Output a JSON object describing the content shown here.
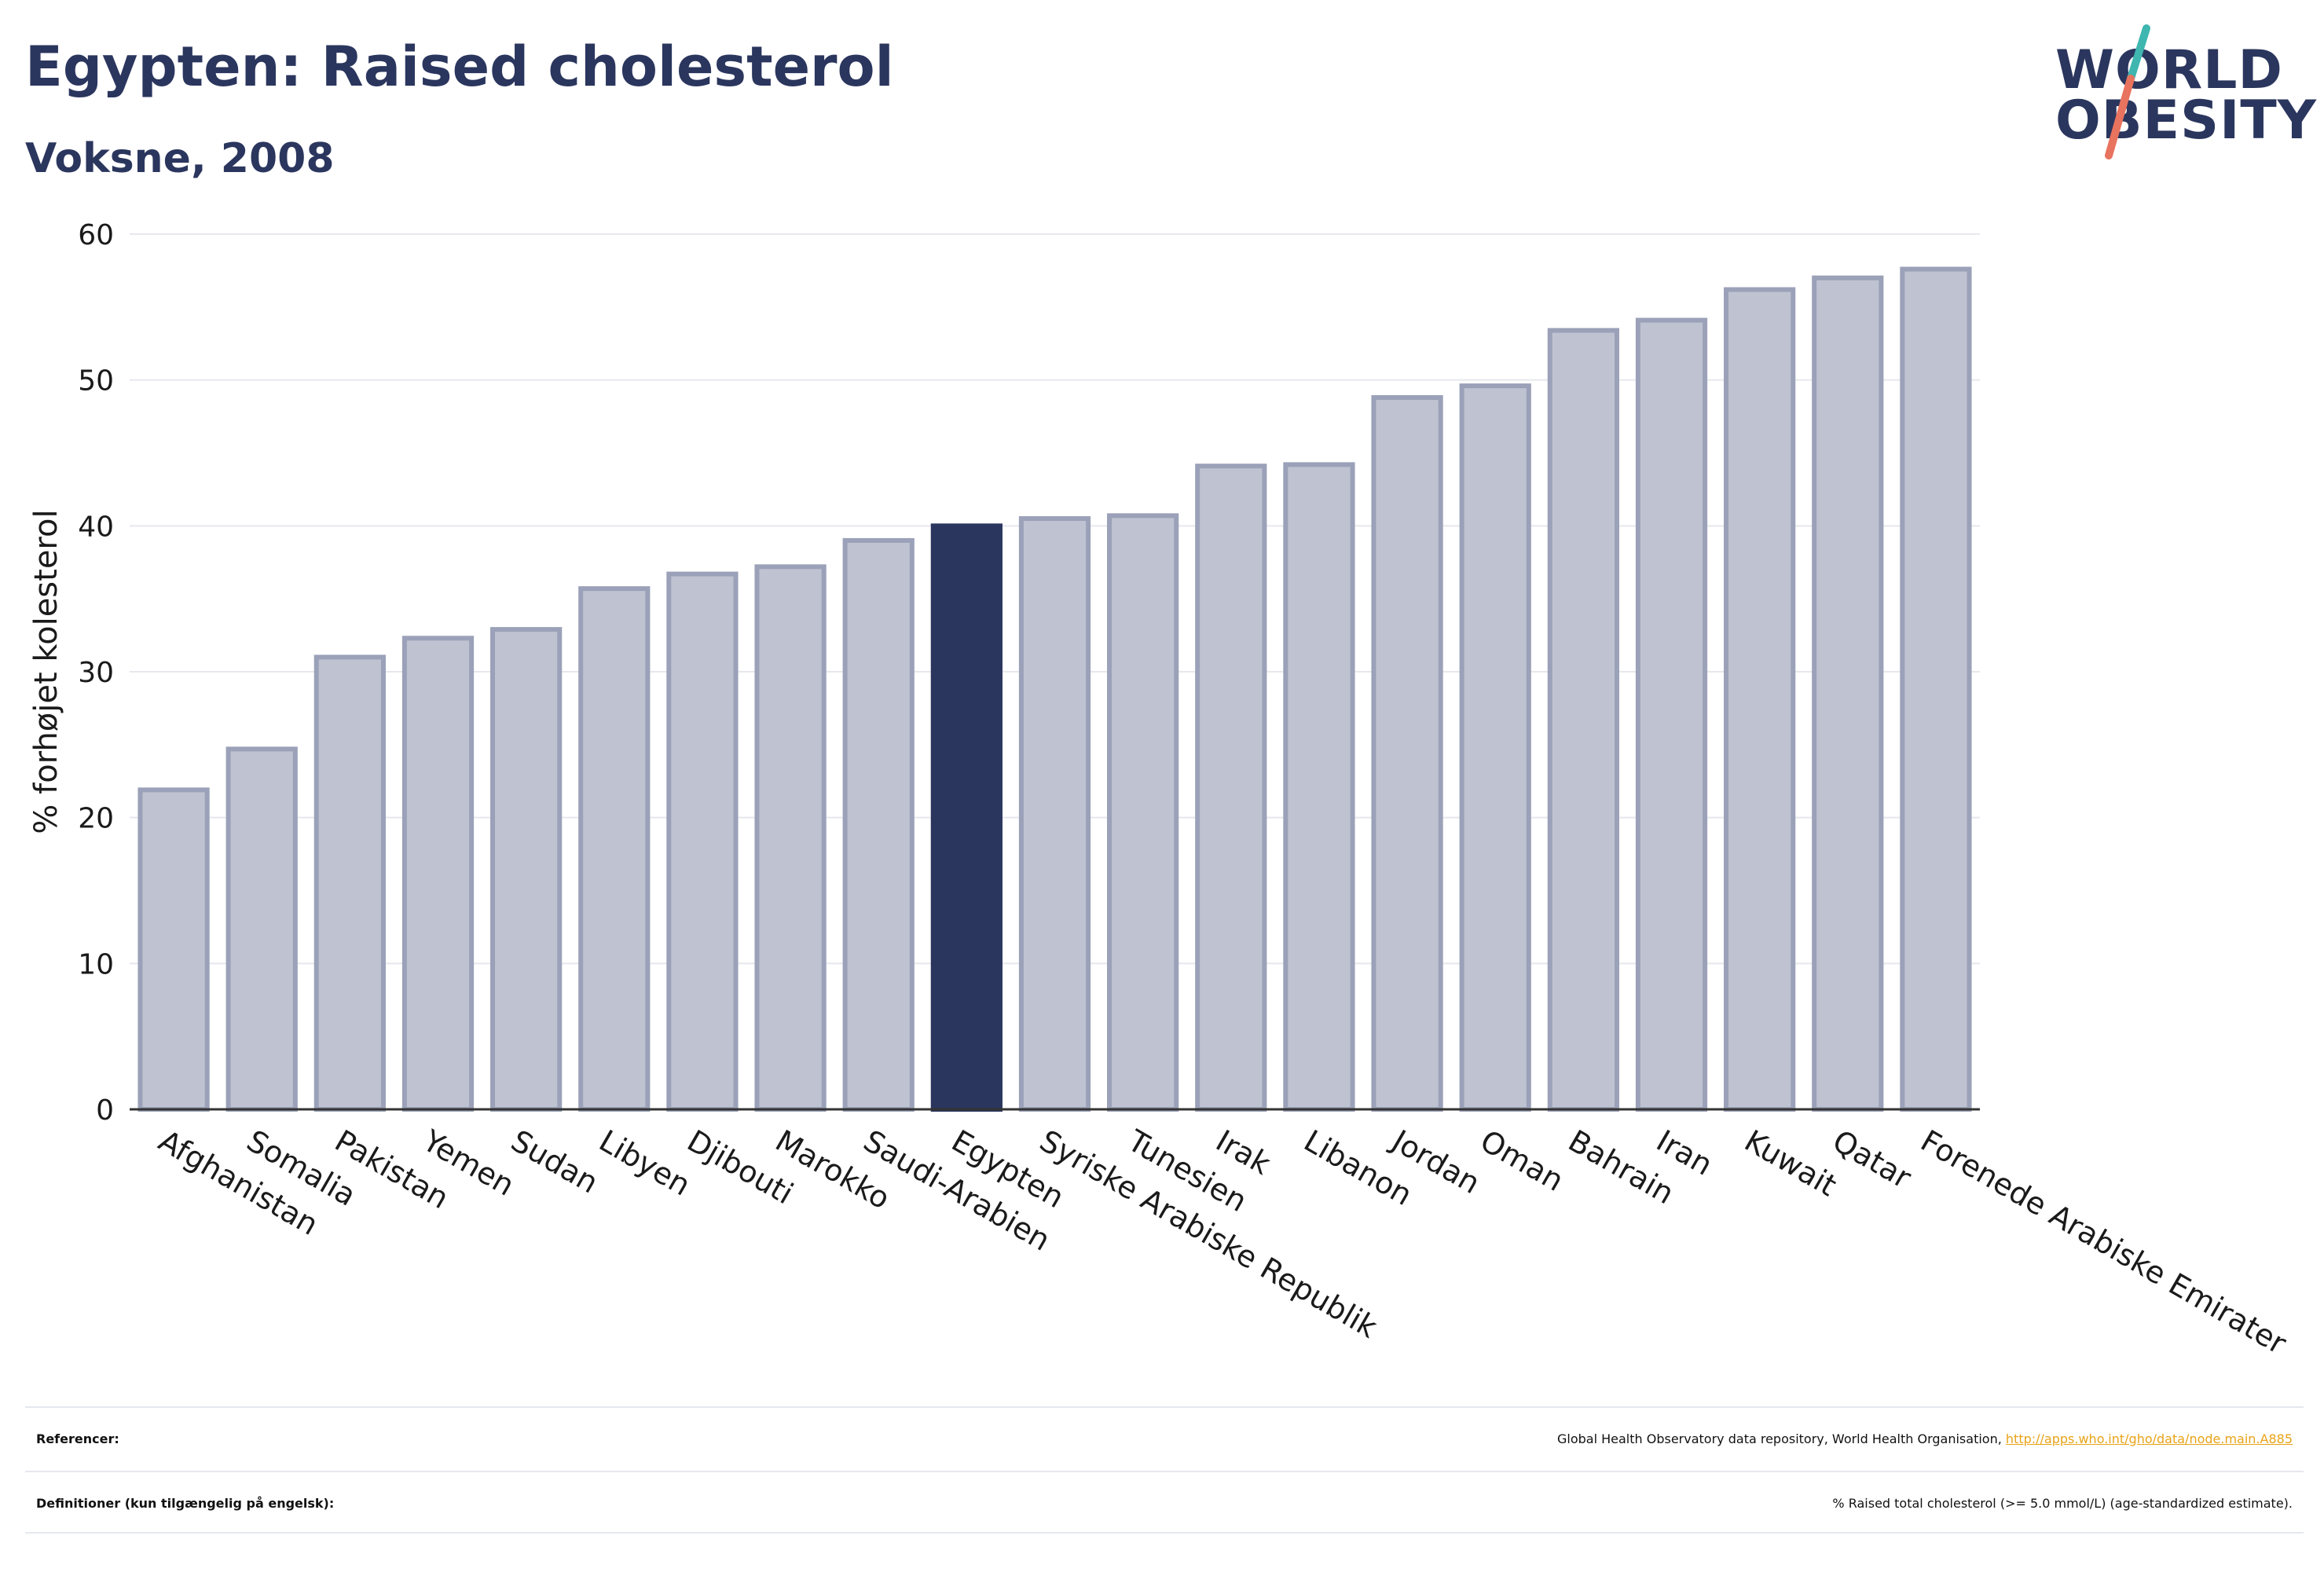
{
  "header": {
    "title": "Egypten: Raised cholesterol",
    "subtitle": "Voksne, 2008"
  },
  "logo": {
    "line1": "WORLD",
    "line2": "OBESITY",
    "accent_colors": [
      "#3fb6b0",
      "#e8735f"
    ]
  },
  "colors": {
    "bar": "#bfc3d1",
    "bar_border": "#9aa1b8",
    "highlight": "#2b365e",
    "grid": "#e6e8ee"
  },
  "chart_data": {
    "type": "bar",
    "ylabel": "% forhøjet kolesterol",
    "ylim": [
      0,
      60
    ],
    "yticks": [
      "0",
      "10",
      "20",
      "30",
      "40",
      "50",
      "60"
    ],
    "grid": true,
    "highlight": "Egypten",
    "categories": [
      "Afghanistan",
      "Somalia",
      "Pakistan",
      "Yemen",
      "Sudan",
      "Libyen",
      "Djibouti",
      "Marokko",
      "Saudi-Arabien",
      "Egypten",
      "Syriske Arabiske Republik",
      "Tunesien",
      "Irak",
      "Libanon",
      "Jordan",
      "Oman",
      "Bahrain",
      "Iran",
      "Kuwait",
      "Qatar",
      "Forenede Arabiske Emirater"
    ],
    "values": [
      21.9,
      24.7,
      31.0,
      32.3,
      32.9,
      35.7,
      36.7,
      37.2,
      39.0,
      40.0,
      40.5,
      40.7,
      44.1,
      44.2,
      48.8,
      49.6,
      53.4,
      54.1,
      56.2,
      57.0,
      57.6
    ]
  },
  "footer": {
    "references_label": "Referencer:",
    "references_text": "Global Health Observatory data repository, World Health Organisation,",
    "references_link": "http://apps.who.int/gho/data/node.main.A885",
    "definitions_label": "Definitioner (kun tilgængelig på engelsk):",
    "definitions_text": "% Raised total cholesterol (>= 5.0 mmol/L) (age-standardized estimate)."
  }
}
